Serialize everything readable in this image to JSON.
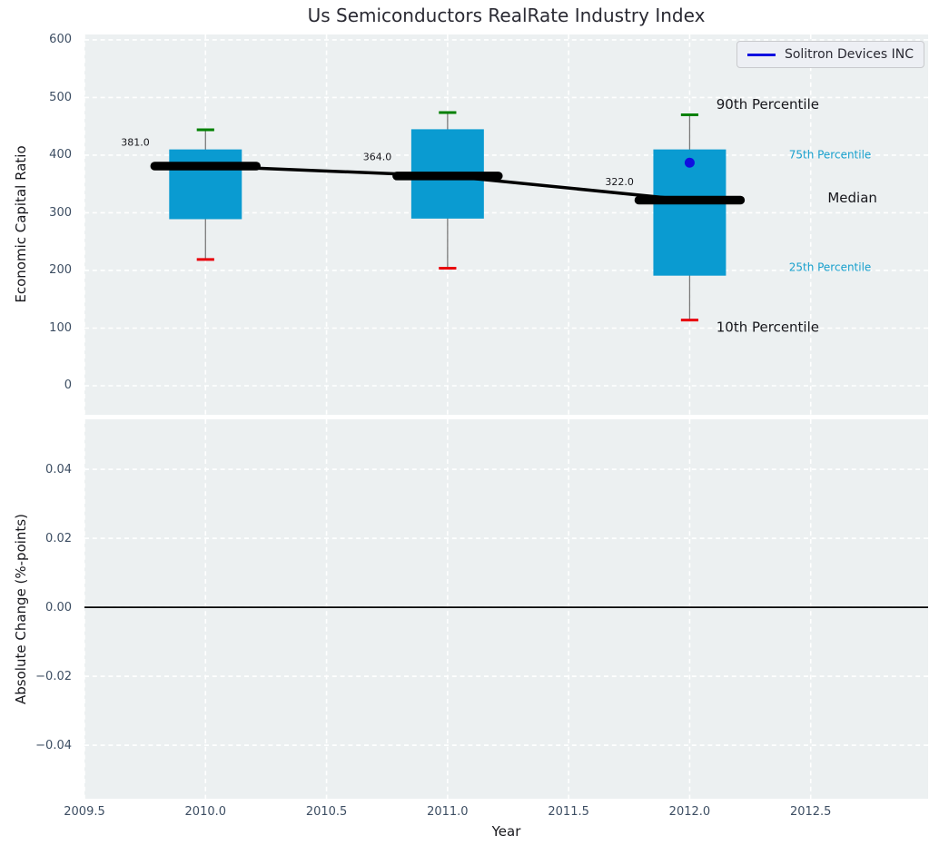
{
  "title": "Us Semiconductors RealRate Industry Index",
  "legend": {
    "label": "Solitron Devices INC"
  },
  "colors": {
    "plot_bg": "#ecf0f1",
    "grid": "#ffffff",
    "box_fill": "#0a9bd1",
    "whisker": "#7a7a7a",
    "cap_top_green": "#008000",
    "cap_bottom_red": "#e8000b",
    "median_black": "#000000",
    "company_blue": "#0f0fe0",
    "teal_label": "#18a0cd",
    "dark_label": "#17171c",
    "tick_text": "#3d4e63"
  },
  "chart_data": [
    {
      "type": "box",
      "ylabel": "Economic Capital Ratio",
      "xlim": [
        2009.5,
        2012.985
      ],
      "ylim": [
        -50.4,
        609.4
      ],
      "grid": true,
      "legend_position": "upper right",
      "show_xtick_labels": false,
      "xticks": [
        {
          "v": 2009.5,
          "label": "2009.5"
        },
        {
          "v": 2010.0,
          "label": "2010.0"
        },
        {
          "v": 2010.5,
          "label": "2010.5"
        },
        {
          "v": 2011.0,
          "label": "2011.0"
        },
        {
          "v": 2011.5,
          "label": "2011.5"
        },
        {
          "v": 2012.0,
          "label": "2012.0"
        },
        {
          "v": 2012.5,
          "label": "2012.5"
        }
      ],
      "yticks": [
        {
          "v": 0,
          "label": "0"
        },
        {
          "v": 100,
          "label": "100"
        },
        {
          "v": 200,
          "label": "200"
        },
        {
          "v": 300,
          "label": "300"
        },
        {
          "v": 400,
          "label": "400"
        },
        {
          "v": 500,
          "label": "500"
        },
        {
          "v": 600,
          "label": "600"
        }
      ],
      "box_width": 0.3,
      "cap_width": 0.072,
      "median_segment_halfwidth": 0.21,
      "boxes": [
        {
          "x": 2010,
          "p10": 219,
          "q1": 289,
          "median": 381,
          "q3": 410,
          "p90": 444,
          "label": "381.0",
          "label_x": 2009.71,
          "label_y": 421
        },
        {
          "x": 2011,
          "p10": 204,
          "q1": 290,
          "median": 364,
          "q3": 445,
          "p90": 474,
          "label": "364.0",
          "label_x": 2010.71,
          "label_y": 396
        },
        {
          "x": 2012,
          "p10": 114,
          "q1": 191,
          "median": 322,
          "q3": 410,
          "p90": 470,
          "label": "322.0",
          "label_x": 2011.71,
          "label_y": 353
        }
      ],
      "median_line": [
        {
          "x": 2010,
          "y": 381
        },
        {
          "x": 2011,
          "y": 364
        },
        {
          "x": 2012,
          "y": 322
        }
      ],
      "company_series": {
        "name": "Solitron Devices INC",
        "points": [
          {
            "x": 2012,
            "y": 387
          }
        ]
      },
      "annotations": [
        {
          "text": "90th Percentile",
          "x": 2012.11,
          "y": 487,
          "style": "dark-large"
        },
        {
          "text": "75th Percentile",
          "x": 2012.41,
          "y": 400,
          "style": "teal-small"
        },
        {
          "text": "Median",
          "x": 2012.57,
          "y": 325,
          "style": "dark-large"
        },
        {
          "text": "25th Percentile",
          "x": 2012.41,
          "y": 205,
          "style": "teal-small"
        },
        {
          "text": "10th Percentile",
          "x": 2012.11,
          "y": 101,
          "style": "dark-large"
        }
      ]
    },
    {
      "type": "line",
      "ylabel": "Absolute Change (%-points)",
      "xlabel": "Year",
      "xlim": [
        2009.5,
        2012.985
      ],
      "ylim": [
        -0.0555,
        0.0545
      ],
      "grid": true,
      "show_xtick_labels": true,
      "xticks": [
        {
          "v": 2009.5,
          "label": "2009.5"
        },
        {
          "v": 2010.0,
          "label": "2010.0"
        },
        {
          "v": 2010.5,
          "label": "2010.5"
        },
        {
          "v": 2011.0,
          "label": "2011.0"
        },
        {
          "v": 2011.5,
          "label": "2011.5"
        },
        {
          "v": 2012.0,
          "label": "2012.0"
        },
        {
          "v": 2012.5,
          "label": "2012.5"
        }
      ],
      "yticks": [
        {
          "v": 0.04,
          "label": "0.04"
        },
        {
          "v": 0.02,
          "label": "0.02"
        },
        {
          "v": 0.0,
          "label": "0.00"
        },
        {
          "v": -0.02,
          "label": "−0.02"
        },
        {
          "v": -0.04,
          "label": "−0.04"
        }
      ],
      "zero_line": 0,
      "series": []
    }
  ]
}
